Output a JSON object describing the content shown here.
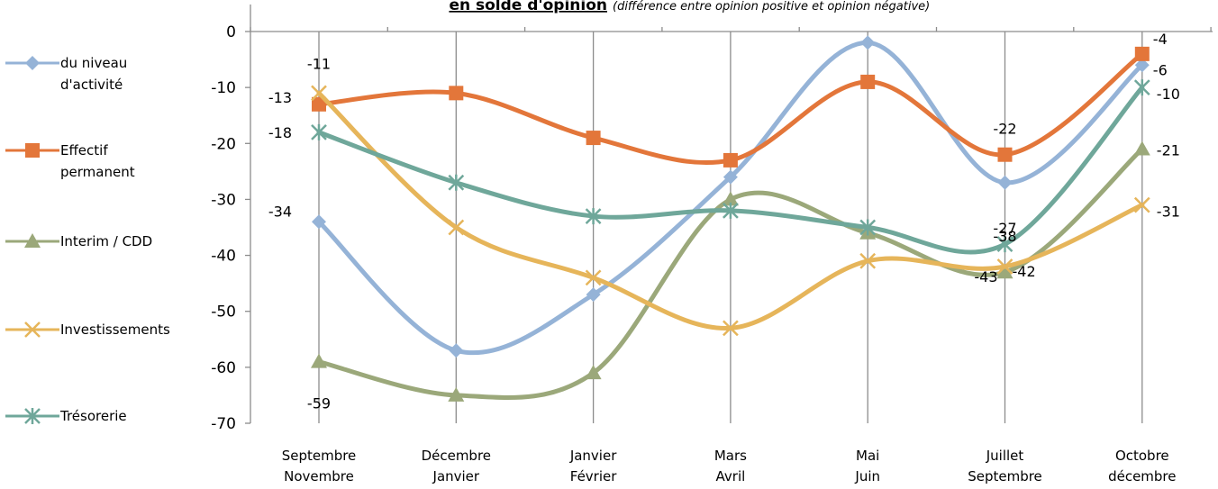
{
  "chart_data": {
    "type": "line",
    "title": "en solde d'opinion",
    "subtitle": "(différence entre opinion positive et opinion négative)",
    "xlabel": "",
    "ylabel": "",
    "ylim": [
      -70,
      0
    ],
    "yticks": [
      0,
      -10,
      -20,
      -30,
      -40,
      -50,
      -60,
      -70
    ],
    "categories": [
      [
        "Septembre",
        "Novembre"
      ],
      [
        "Décembre",
        "Janvier"
      ],
      [
        "Janvier",
        "Février"
      ],
      [
        "Mars",
        "Avril"
      ],
      [
        "Mai",
        "Juin"
      ],
      [
        "Juillet",
        "Septembre"
      ],
      [
        "Octobre",
        "décembre"
      ]
    ],
    "grid": "vertical",
    "legend_position": "left",
    "series": [
      {
        "name": "du niveau d'activité",
        "legend_lines": [
          "du niveau",
          "d'activité"
        ],
        "color": "#95B3D7",
        "marker": "diamond",
        "values": [
          -34,
          -57,
          -47,
          -26,
          -2,
          -27,
          -6
        ]
      },
      {
        "name": "Effectif permanent",
        "legend_lines": [
          "Effectif",
          "permanent"
        ],
        "color": "#E3763A",
        "marker": "square",
        "values": [
          -13,
          -11,
          -19,
          -23,
          -9,
          -22,
          -4
        ]
      },
      {
        "name": "Interim / CDD",
        "legend_lines": [
          "Interim / CDD"
        ],
        "color": "#9BA87A",
        "marker": "triangle",
        "values": [
          -59,
          -65,
          -61,
          -30,
          -36,
          -43,
          -21
        ]
      },
      {
        "name": "Investissements",
        "legend_lines": [
          "Investissements"
        ],
        "color": "#E6B55A",
        "marker": "x",
        "values": [
          -11,
          -35,
          -44,
          -53,
          -41,
          -42,
          -31
        ]
      },
      {
        "name": "Trésorerie",
        "legend_lines": [
          "Trésorerie"
        ],
        "color": "#6FA79A",
        "marker": "star",
        "values": [
          -18,
          -27,
          -33,
          -32,
          -35,
          -38,
          -10
        ]
      }
    ],
    "data_labels": [
      {
        "text": "-11",
        "series": 3,
        "point": 0
      },
      {
        "text": "-13",
        "series": 1,
        "point": 0
      },
      {
        "text": "-18",
        "series": 4,
        "point": 0
      },
      {
        "text": "-34",
        "series": 0,
        "point": 0
      },
      {
        "text": "-59",
        "series": 2,
        "point": 0
      },
      {
        "text": "-22",
        "series": 1,
        "point": 5
      },
      {
        "text": "-27",
        "series": 0,
        "point": 5
      },
      {
        "text": "-38",
        "series": 4,
        "point": 5
      },
      {
        "text": "-43",
        "series": 2,
        "point": 5
      },
      {
        "text": "-42",
        "series": 3,
        "point": 5
      },
      {
        "text": "-4",
        "series": 1,
        "point": 6
      },
      {
        "text": "-6",
        "series": 0,
        "point": 6
      },
      {
        "text": "-10",
        "series": 4,
        "point": 6
      },
      {
        "text": "-21",
        "series": 2,
        "point": 6
      },
      {
        "text": "-31",
        "series": 3,
        "point": 6
      }
    ]
  }
}
